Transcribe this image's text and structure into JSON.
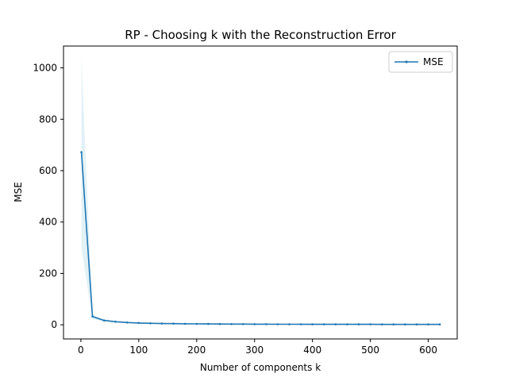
{
  "chart_data": {
    "type": "line",
    "title": "RP - Choosing k with the Reconstruction Error",
    "xlabel": "Number of components k",
    "ylabel": "MSE",
    "xlim": [
      -30,
      650
    ],
    "ylim": [
      -55,
      1085
    ],
    "xticks": [
      0,
      100,
      200,
      300,
      400,
      500,
      600
    ],
    "yticks": [
      0,
      200,
      400,
      600,
      800,
      1000
    ],
    "grid": false,
    "legend_position": "top-right",
    "series": [
      {
        "name": "MSE",
        "color": "#1f77b4",
        "band_color": "#add8e6",
        "x": [
          1,
          20,
          40,
          60,
          80,
          100,
          120,
          140,
          160,
          180,
          200,
          220,
          240,
          260,
          280,
          300,
          320,
          340,
          360,
          380,
          400,
          420,
          440,
          460,
          480,
          500,
          520,
          540,
          560,
          580,
          600,
          620
        ],
        "y": [
          672,
          32,
          17,
          12,
          9,
          7,
          6,
          5,
          4.5,
          4,
          3.6,
          3.3,
          3.1,
          2.9,
          2.7,
          2.5,
          2.4,
          2.3,
          2.2,
          2.1,
          2.0,
          1.9,
          1.85,
          1.8,
          1.75,
          1.7,
          1.65,
          1.6,
          1.55,
          1.5,
          1.45,
          1.4
        ],
        "lower": [
          300,
          22,
          13,
          9.5,
          7.5,
          6,
          5.2,
          4.4,
          4,
          3.6,
          3.2,
          3,
          2.8,
          2.6,
          2.45,
          2.3,
          2.2,
          2.1,
          2.0,
          1.95,
          1.85,
          1.8,
          1.75,
          1.7,
          1.65,
          1.6,
          1.55,
          1.5,
          1.45,
          1.4,
          1.35,
          1.3
        ],
        "upper": [
          1035,
          42,
          21,
          14.5,
          10.5,
          8,
          6.8,
          5.6,
          5,
          4.4,
          4,
          3.6,
          3.4,
          3.2,
          2.95,
          2.7,
          2.6,
          2.5,
          2.4,
          2.25,
          2.15,
          2.0,
          1.95,
          1.9,
          1.85,
          1.8,
          1.75,
          1.7,
          1.65,
          1.6,
          1.55,
          1.5
        ]
      }
    ]
  }
}
